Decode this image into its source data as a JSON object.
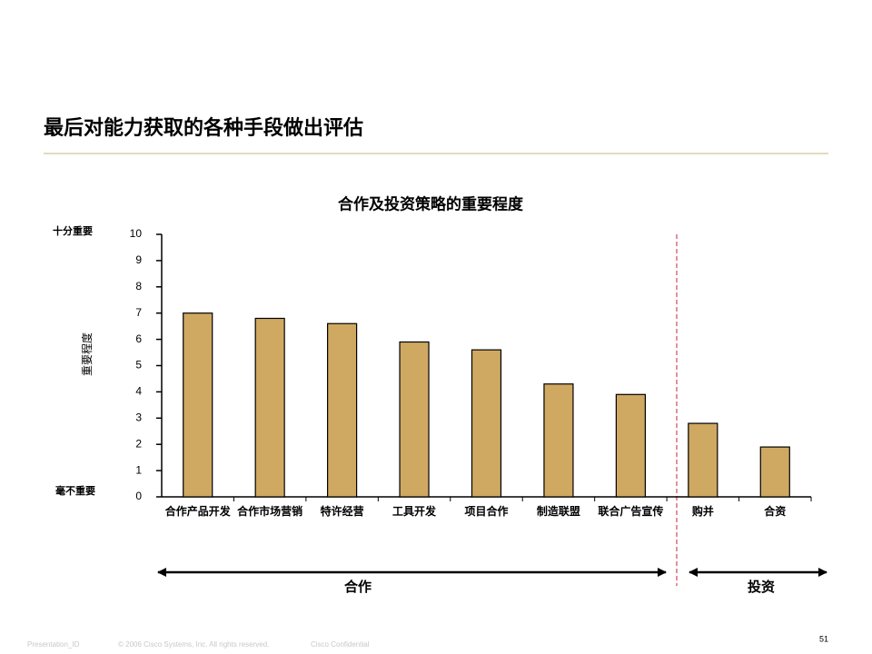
{
  "slide": {
    "title": "最后对能力获取的各种手段做出评估",
    "footer": [
      "Presentation_ID",
      "© 2006 Cisco Systems, Inc. All rights reserved.",
      "Cisco Confidential"
    ],
    "page": "51"
  },
  "chart_data": {
    "type": "bar",
    "title": "合作及投资策略的重要程度",
    "y_label": "重要程度",
    "annotations": [
      "十分重要",
      "毫不重要"
    ],
    "groups": [
      "合作",
      "投资"
    ],
    "categories": [
      "合作产品开发",
      "合作市场营销",
      "特许经营",
      "工具开发",
      "项目合作",
      "制造联盟",
      "联合广告宣传",
      "购并",
      "合资"
    ],
    "values": [
      7.0,
      6.8,
      6.6,
      5.9,
      5.6,
      4.3,
      3.9,
      2.8,
      1.9
    ],
    "color": "#cfa862",
    "ylim": [
      0,
      10
    ],
    "yticks": [
      0,
      1,
      2,
      3,
      4,
      5,
      6,
      7,
      8,
      9,
      10
    ],
    "grid": false
  }
}
